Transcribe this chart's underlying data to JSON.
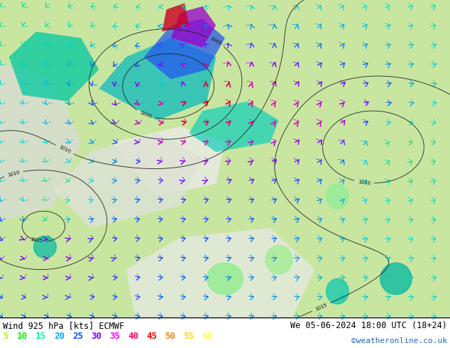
{
  "title_left": "Wind 925 hPa [kts] ECMWF",
  "title_right": "We 05-06-2024 18:00 UTC (18+24)",
  "credit": "©weatheronline.co.uk",
  "colorbar_values": [
    5,
    10,
    15,
    20,
    25,
    30,
    35,
    40,
    45,
    50,
    55,
    60
  ],
  "colorbar_colors": [
    "#aaff00",
    "#00ff00",
    "#00ffaa",
    "#00aaff",
    "#0055ff",
    "#8800ff",
    "#ff00ff",
    "#ff0066",
    "#ff0000",
    "#ff8800",
    "#ffdd00",
    "#ffff44"
  ],
  "figsize": [
    6.34,
    4.9
  ],
  "dpi": 100,
  "land_color": "#c8e6a0",
  "sea_color": "#e0e8d8",
  "white_area": "#f0f0f0",
  "isobar_color": "#333333"
}
